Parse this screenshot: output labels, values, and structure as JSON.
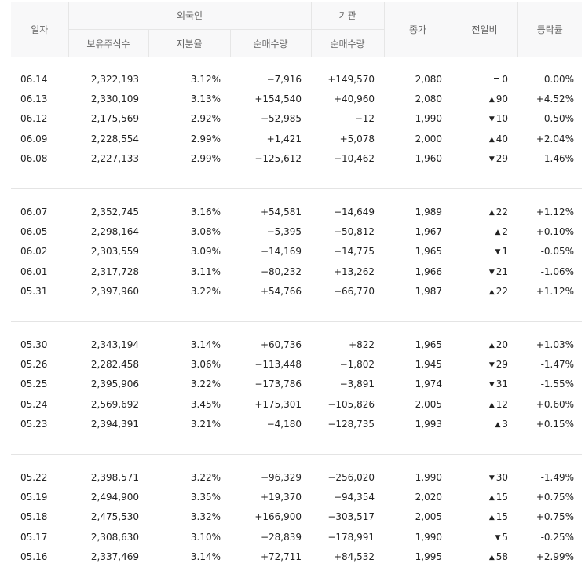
{
  "headers": {
    "date": "일자",
    "foreign": "외국인",
    "institution": "기관",
    "close": "종가",
    "change": "전일비",
    "rate": "등락률",
    "holdings": "보유주식수",
    "ratio": "지분율",
    "foreign_net": "순매수량",
    "inst_net": "순매수량"
  },
  "groups": [
    [
      {
        "date": "06.14",
        "holdings": "2,322,193",
        "ratio": "3.12%",
        "foreign_net": "−7,916",
        "fdir": "down",
        "inst_net": "+149,570",
        "idir": "up",
        "close": "2,080",
        "cdir": "flat",
        "change": "0",
        "chdir": "flat",
        "rate": "0.00%",
        "rdir": "flat"
      },
      {
        "date": "06.13",
        "holdings": "2,330,109",
        "ratio": "3.13%",
        "foreign_net": "+154,540",
        "fdir": "up",
        "inst_net": "+40,960",
        "idir": "up",
        "close": "2,080",
        "cdir": "up",
        "change": "90",
        "chdir": "up",
        "rate": "+4.52%",
        "rdir": "up"
      },
      {
        "date": "06.12",
        "holdings": "2,175,569",
        "ratio": "2.92%",
        "foreign_net": "−52,985",
        "fdir": "down",
        "inst_net": "−12",
        "idir": "down",
        "close": "1,990",
        "cdir": "down",
        "change": "10",
        "chdir": "down",
        "rate": "-0.50%",
        "rdir": "down"
      },
      {
        "date": "06.09",
        "holdings": "2,228,554",
        "ratio": "2.99%",
        "foreign_net": "+1,421",
        "fdir": "up",
        "inst_net": "+5,078",
        "idir": "up",
        "close": "2,000",
        "cdir": "up",
        "change": "40",
        "chdir": "up",
        "rate": "+2.04%",
        "rdir": "up"
      },
      {
        "date": "06.08",
        "holdings": "2,227,133",
        "ratio": "2.99%",
        "foreign_net": "−125,612",
        "fdir": "down",
        "inst_net": "−10,462",
        "idir": "down",
        "close": "1,960",
        "cdir": "down",
        "change": "29",
        "chdir": "down",
        "rate": "-1.46%",
        "rdir": "down"
      }
    ],
    [
      {
        "date": "06.07",
        "holdings": "2,352,745",
        "ratio": "3.16%",
        "foreign_net": "+54,581",
        "fdir": "up",
        "inst_net": "−14,649",
        "idir": "down",
        "close": "1,989",
        "cdir": "up",
        "change": "22",
        "chdir": "up",
        "rate": "+1.12%",
        "rdir": "up"
      },
      {
        "date": "06.05",
        "holdings": "2,298,164",
        "ratio": "3.08%",
        "foreign_net": "−5,395",
        "fdir": "down",
        "inst_net": "−50,812",
        "idir": "down",
        "close": "1,967",
        "cdir": "up",
        "change": "2",
        "chdir": "up",
        "rate": "+0.10%",
        "rdir": "up"
      },
      {
        "date": "06.02",
        "holdings": "2,303,559",
        "ratio": "3.09%",
        "foreign_net": "−14,169",
        "fdir": "down",
        "inst_net": "−14,775",
        "idir": "down",
        "close": "1,965",
        "cdir": "down",
        "change": "1",
        "chdir": "down",
        "rate": "-0.05%",
        "rdir": "down"
      },
      {
        "date": "06.01",
        "holdings": "2,317,728",
        "ratio": "3.11%",
        "foreign_net": "−80,232",
        "fdir": "down",
        "inst_net": "+13,262",
        "idir": "up",
        "close": "1,966",
        "cdir": "down",
        "change": "21",
        "chdir": "down",
        "rate": "-1.06%",
        "rdir": "down"
      },
      {
        "date": "05.31",
        "holdings": "2,397,960",
        "ratio": "3.22%",
        "foreign_net": "+54,766",
        "fdir": "up",
        "inst_net": "−66,770",
        "idir": "down",
        "close": "1,987",
        "cdir": "up",
        "change": "22",
        "chdir": "up",
        "rate": "+1.12%",
        "rdir": "up"
      }
    ],
    [
      {
        "date": "05.30",
        "holdings": "2,343,194",
        "ratio": "3.14%",
        "foreign_net": "+60,736",
        "fdir": "up",
        "inst_net": "+822",
        "idir": "up",
        "close": "1,965",
        "cdir": "up",
        "change": "20",
        "chdir": "up",
        "rate": "+1.03%",
        "rdir": "up"
      },
      {
        "date": "05.26",
        "holdings": "2,282,458",
        "ratio": "3.06%",
        "foreign_net": "−113,448",
        "fdir": "down",
        "inst_net": "−1,802",
        "idir": "down",
        "close": "1,945",
        "cdir": "down",
        "change": "29",
        "chdir": "down",
        "rate": "-1.47%",
        "rdir": "down"
      },
      {
        "date": "05.25",
        "holdings": "2,395,906",
        "ratio": "3.22%",
        "foreign_net": "−173,786",
        "fdir": "down",
        "inst_net": "−3,891",
        "idir": "down",
        "close": "1,974",
        "cdir": "down",
        "change": "31",
        "chdir": "down",
        "rate": "-1.55%",
        "rdir": "down"
      },
      {
        "date": "05.24",
        "holdings": "2,569,692",
        "ratio": "3.45%",
        "foreign_net": "+175,301",
        "fdir": "up",
        "inst_net": "−105,826",
        "idir": "down",
        "close": "2,005",
        "cdir": "up",
        "change": "12",
        "chdir": "up",
        "rate": "+0.60%",
        "rdir": "up"
      },
      {
        "date": "05.23",
        "holdings": "2,394,391",
        "ratio": "3.21%",
        "foreign_net": "−4,180",
        "fdir": "down",
        "inst_net": "−128,735",
        "idir": "down",
        "close": "1,993",
        "cdir": "up",
        "change": "3",
        "chdir": "up",
        "rate": "+0.15%",
        "rdir": "up"
      }
    ],
    [
      {
        "date": "05.22",
        "holdings": "2,398,571",
        "ratio": "3.22%",
        "foreign_net": "−96,329",
        "fdir": "down",
        "inst_net": "−256,020",
        "idir": "down",
        "close": "1,990",
        "cdir": "down",
        "change": "30",
        "chdir": "down",
        "rate": "-1.49%",
        "rdir": "down"
      },
      {
        "date": "05.19",
        "holdings": "2,494,900",
        "ratio": "3.35%",
        "foreign_net": "+19,370",
        "fdir": "up",
        "inst_net": "−94,354",
        "idir": "down",
        "close": "2,020",
        "cdir": "up",
        "change": "15",
        "chdir": "up",
        "rate": "+0.75%",
        "rdir": "up"
      },
      {
        "date": "05.18",
        "holdings": "2,475,530",
        "ratio": "3.32%",
        "foreign_net": "+166,900",
        "fdir": "up",
        "inst_net": "−303,517",
        "idir": "down",
        "close": "2,005",
        "cdir": "up",
        "change": "15",
        "chdir": "up",
        "rate": "+0.75%",
        "rdir": "up"
      },
      {
        "date": "05.17",
        "holdings": "2,308,630",
        "ratio": "3.10%",
        "foreign_net": "−28,839",
        "fdir": "down",
        "inst_net": "−178,991",
        "idir": "down",
        "close": "1,990",
        "cdir": "down",
        "change": "5",
        "chdir": "down",
        "rate": "-0.25%",
        "rdir": "down"
      },
      {
        "date": "05.16",
        "holdings": "2,337,469",
        "ratio": "3.14%",
        "foreign_net": "+72,711",
        "fdir": "up",
        "inst_net": "+84,532",
        "idir": "up",
        "close": "1,995",
        "cdir": "up",
        "change": "58",
        "chdir": "up",
        "rate": "+2.99%",
        "rdir": "up"
      }
    ]
  ],
  "colors": {
    "up": "#e5202f",
    "down": "#2a56c6",
    "flat": "#222222"
  },
  "icons": {
    "up": "triangle-up-icon",
    "down": "triangle-down-icon",
    "flat": "dash-icon"
  }
}
